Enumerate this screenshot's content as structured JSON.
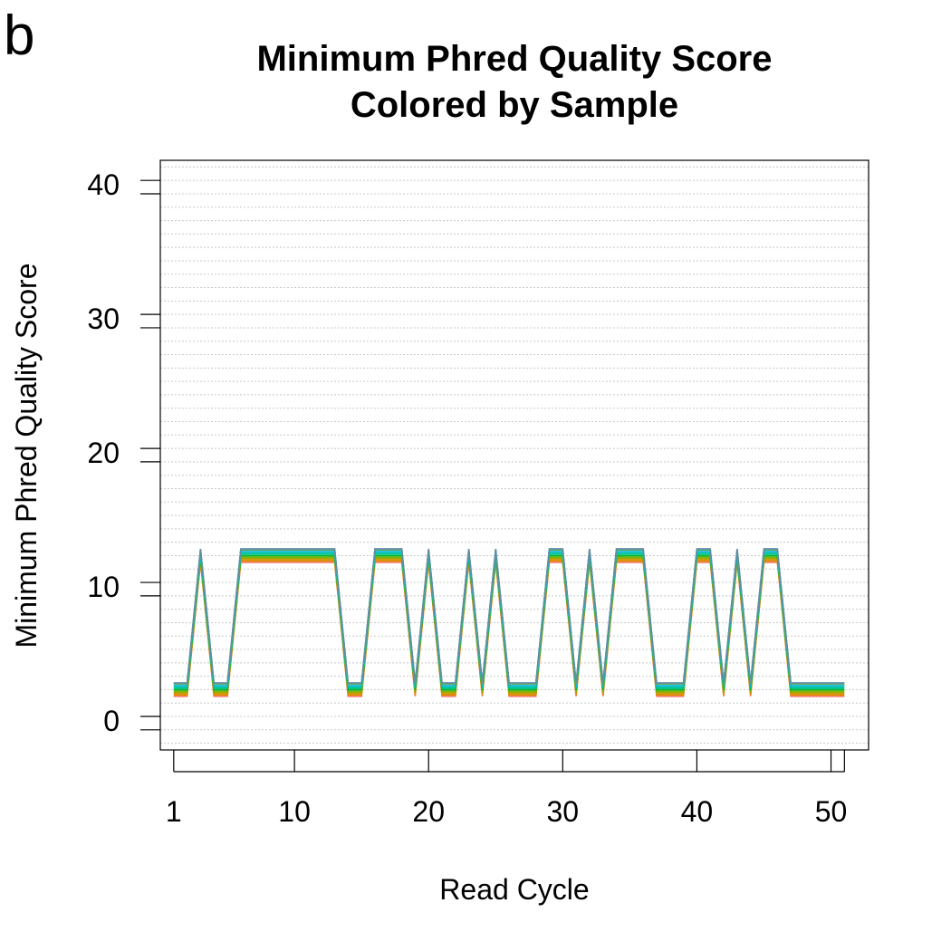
{
  "panel_label": "b",
  "chart_data": {
    "type": "line",
    "title": [
      "Minimum Phred Quality Score",
      "Colored by Sample"
    ],
    "xlabel": "Read Cycle",
    "ylabel": "Minimum Phred Quality Score",
    "xlim": [
      0,
      52.8
    ],
    "ylim": [
      -1.5,
      42.5
    ],
    "x_ticks": [
      1,
      10,
      20,
      30,
      40,
      50
    ],
    "x_minor_ticks": [
      51
    ],
    "y_ticks": [
      0,
      10,
      20,
      30,
      40
    ],
    "y_minor_ticks": [
      1,
      11,
      21,
      31,
      41
    ],
    "grid": "horizontal-dotted",
    "cycles": [
      1,
      2,
      3,
      4,
      5,
      6,
      7,
      8,
      9,
      10,
      11,
      12,
      13,
      14,
      15,
      16,
      17,
      18,
      19,
      20,
      21,
      22,
      23,
      24,
      25,
      26,
      27,
      28,
      29,
      30,
      31,
      32,
      33,
      34,
      35,
      36,
      37,
      38,
      39,
      40,
      41,
      42,
      43,
      44,
      45,
      46,
      47,
      48,
      49,
      50,
      51
    ],
    "pattern": [
      "L",
      "L",
      "H",
      "L",
      "L",
      "H",
      "H",
      "H",
      "H",
      "H",
      "H",
      "H",
      "H",
      "L",
      "L",
      "H",
      "H",
      "H",
      "L",
      "H",
      "L",
      "L",
      "H",
      "L",
      "H",
      "L",
      "L",
      "L",
      "H",
      "H",
      "L",
      "H",
      "L",
      "H",
      "H",
      "H",
      "L",
      "L",
      "L",
      "H",
      "H",
      "L",
      "H",
      "L",
      "H",
      "H",
      "L",
      "L",
      "L",
      "L",
      "L"
    ],
    "series": [
      {
        "color": "#f8766d",
        "low": 2.5,
        "high": 12.5
      },
      {
        "color": "#e58700",
        "low": 2.6,
        "high": 12.6
      },
      {
        "color": "#c99800",
        "low": 2.7,
        "high": 12.7
      },
      {
        "color": "#a3a500",
        "low": 2.8,
        "high": 12.8
      },
      {
        "color": "#6bb100",
        "low": 2.9,
        "high": 12.9
      },
      {
        "color": "#00ba38",
        "low": 3.0,
        "high": 13.0
      },
      {
        "color": "#00bf7d",
        "low": 3.1,
        "high": 13.1
      },
      {
        "color": "#00c0af",
        "low": 3.2,
        "high": 13.2
      },
      {
        "color": "#00bcd8",
        "low": 3.3,
        "high": 13.3
      },
      {
        "color": "#00b0f6",
        "low": 3.4,
        "high": 13.4
      },
      {
        "color": "#b79f00",
        "low": 3.45,
        "high": 13.45
      },
      {
        "color": "#619cff",
        "low": 3.5,
        "high": 13.5
      },
      {
        "color": "#5f8f9f",
        "low": 3.5,
        "high": 13.5
      }
    ]
  }
}
